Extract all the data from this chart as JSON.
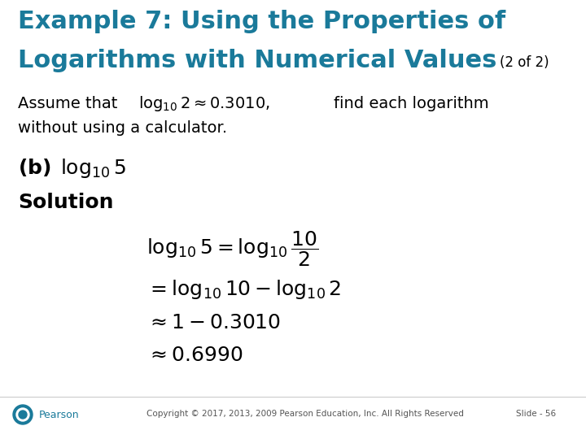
{
  "title_line1": "Example 7: Using the Properties of",
  "title_line2": "Logarithms with Numerical Values",
  "title_suffix": "(2 of 2)",
  "title_color": "#1a7a9a",
  "title_fontsize": 22,
  "suffix_fontsize": 12,
  "body_fontsize": 14,
  "bold_fontsize": 16,
  "math_fontsize": 15,
  "background_color": "#ffffff",
  "text_color": "#000000",
  "footer_text": "Copyright © 2017, 2013, 2009 Pearson Education, Inc. All Rights Reserved",
  "slide_text": "Slide - 56",
  "pearson_color": "#1a7a9a"
}
